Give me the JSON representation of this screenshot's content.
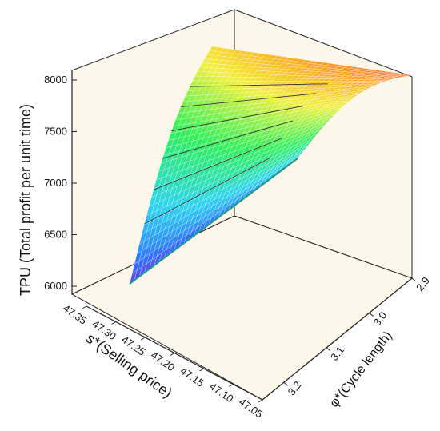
{
  "chart_data": {
    "type": "surface3d",
    "title": "",
    "zlabel": "TPU (Total profit per unit time)",
    "xlabel": "s*(Selling price)",
    "ylabel": "φ*(Cycle length)",
    "z_ticks": [
      "6000",
      "6500",
      "7000",
      "7500",
      "8000"
    ],
    "x_ticks": [
      "47.35",
      "47.30",
      "47.25",
      "47.20",
      "47.15",
      "47.10",
      "47.05"
    ],
    "y_ticks": [
      "2.9",
      "3.0",
      "3.1",
      "3.2"
    ],
    "zlim": [
      5950,
      8100
    ],
    "xlim": [
      47.05,
      47.35
    ],
    "ylim": [
      2.9,
      3.25
    ],
    "colormap": [
      "#8b2be2",
      "#2f6fff",
      "#2bd5f0",
      "#2ef05a",
      "#f2f03a",
      "#ff9a1a",
      "#e84848"
    ],
    "contour_levels": [
      6500,
      6750,
      7000,
      7250,
      7500,
      7750
    ],
    "surface": {
      "description_free": true,
      "z_min": 6000,
      "z_max": 8050
    },
    "pane_color": "#fdf7ea"
  }
}
